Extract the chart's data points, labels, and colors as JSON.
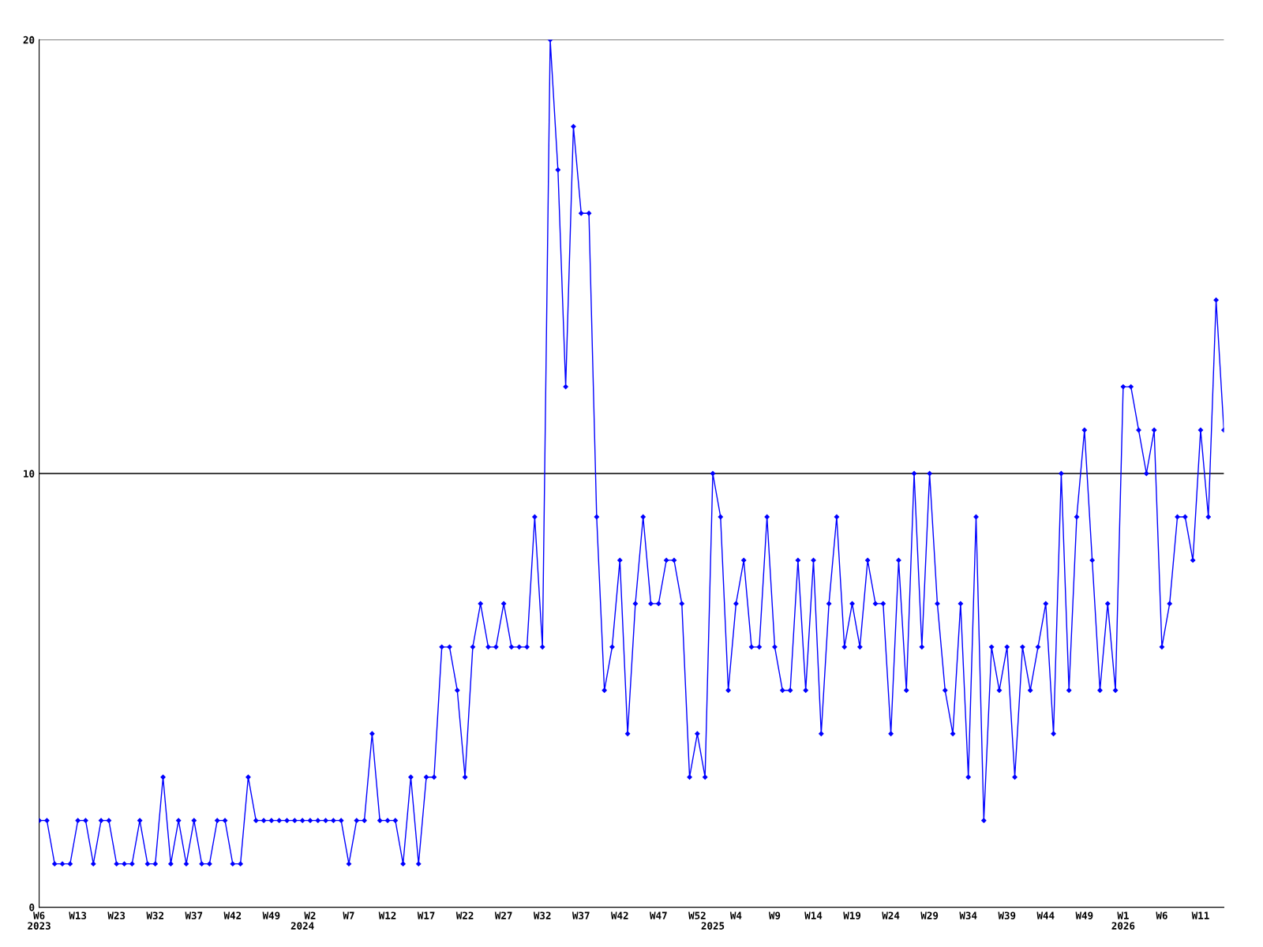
{
  "chart_data": {
    "type": "line",
    "categories": [
      "W6\n2023",
      null,
      null,
      null,
      null,
      "W13",
      null,
      null,
      null,
      null,
      "W23",
      null,
      null,
      null,
      null,
      "W32",
      null,
      null,
      null,
      null,
      "W37",
      null,
      null,
      null,
      null,
      "W42",
      null,
      null,
      null,
      null,
      "W49",
      null,
      null,
      null,
      "\n2024",
      "W2",
      null,
      null,
      null,
      null,
      "W7",
      null,
      null,
      null,
      null,
      "W12",
      null,
      null,
      null,
      null,
      "W17",
      null,
      null,
      null,
      null,
      "W22",
      null,
      null,
      null,
      null,
      "W27",
      null,
      null,
      null,
      null,
      "W32",
      null,
      null,
      null,
      null,
      "W37",
      null,
      null,
      null,
      null,
      "W42",
      null,
      null,
      null,
      null,
      "W47",
      null,
      null,
      null,
      null,
      "W52",
      null,
      "\n2025",
      null,
      null,
      "W4",
      null,
      null,
      null,
      null,
      "W9",
      null,
      null,
      null,
      null,
      "W14",
      null,
      null,
      null,
      null,
      "W19",
      null,
      null,
      null,
      null,
      "W24",
      null,
      null,
      null,
      null,
      "W29",
      null,
      null,
      null,
      null,
      "W34",
      null,
      null,
      null,
      null,
      "W39",
      null,
      null,
      null,
      null,
      "W44",
      null,
      null,
      null,
      null,
      "W49",
      null,
      null,
      null,
      null,
      "W1\n2026",
      null,
      null,
      null,
      null,
      "W6",
      null,
      null,
      null,
      null,
      "W11",
      null,
      null,
      null
    ],
    "series": [
      {
        "color": "#0000ff",
        "values": [
          2,
          2,
          1,
          1,
          1,
          2,
          2,
          1,
          2,
          2,
          1,
          1,
          1,
          2,
          1,
          1,
          3,
          1,
          2,
          1,
          2,
          1,
          1,
          2,
          2,
          1,
          1,
          3,
          2,
          2,
          2,
          2,
          2,
          2,
          2,
          2,
          2,
          2,
          2,
          2,
          1,
          2,
          2,
          4,
          2,
          2,
          2,
          1,
          3,
          1,
          3,
          3,
          6,
          6,
          5,
          3,
          6,
          7,
          6,
          6,
          7,
          6,
          6,
          6,
          9,
          6,
          20,
          17,
          12,
          18,
          16,
          16,
          9,
          5,
          6,
          8,
          4,
          7,
          9,
          7,
          7,
          8,
          8,
          7,
          3,
          4,
          3,
          10,
          9,
          5,
          7,
          8,
          6,
          6,
          9,
          6,
          5,
          5,
          8,
          5,
          8,
          4,
          7,
          9,
          6,
          7,
          6,
          8,
          7,
          7,
          4,
          8,
          5,
          10,
          6,
          10,
          7,
          5,
          4,
          7,
          3,
          9,
          2,
          6,
          5,
          6,
          3,
          6,
          5,
          6,
          7,
          4,
          10,
          5,
          9,
          11,
          8,
          5,
          7,
          5,
          12,
          12,
          11,
          10,
          11,
          6,
          7,
          9,
          9,
          8,
          11,
          9,
          14,
          11
        ]
      }
    ],
    "ylim": [
      0,
      20
    ],
    "yticks": [
      0,
      10,
      20
    ],
    "grid": "y",
    "marker": "diamond",
    "line_style": "solid"
  }
}
